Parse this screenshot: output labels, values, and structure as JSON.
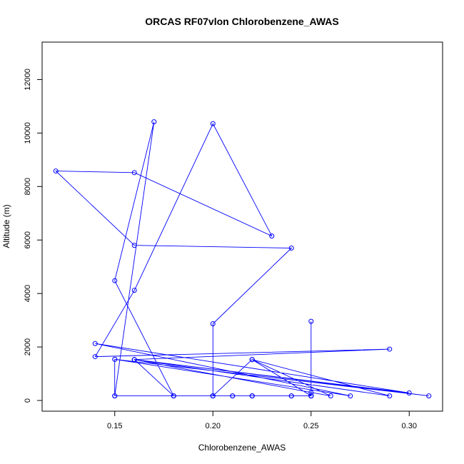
{
  "chart_data": {
    "type": "line",
    "title": "ORCAS RF07vlon Chlorobenzene_AWAS",
    "xlabel": "Chlorobenzene_AWAS",
    "ylabel": "Altitude (m)",
    "xlim": [
      0.113,
      0.317
    ],
    "ylim": [
      -400,
      13400
    ],
    "x_ticks": [
      0.15,
      0.2,
      0.25,
      0.3
    ],
    "x_tick_labels": [
      "0.15",
      "0.20",
      "0.25",
      "0.30"
    ],
    "y_ticks": [
      0,
      2000,
      4000,
      6000,
      8000,
      10000,
      12000
    ],
    "y_tick_labels": [
      "0",
      "2000",
      "4000",
      "6000",
      "8000",
      "10000",
      "12000"
    ],
    "grid": false,
    "series_color": "#0000ff",
    "series": [
      {
        "x": [
          0.15,
          0.15,
          0.18,
          0.2,
          0.21,
          0.22,
          0.24,
          0.25,
          0.25,
          0.25,
          0.2,
          0.2,
          0.24,
          0.16,
          0.12,
          0.16,
          0.23,
          0.2,
          0.16,
          0.14,
          0.29,
          0.16,
          0.25,
          0.26,
          0.22,
          0.2,
          0.18,
          0.16,
          0.31,
          0.15,
          0.27,
          0.14,
          0.3,
          0.16,
          0.29,
          0.22,
          0.25,
          0.22,
          0.25,
          0.15,
          0.17,
          0.15,
          0.18,
          0.22,
          0.2,
          0.21,
          0.22,
          0.24,
          0.25
        ],
        "y": [
          1540,
          170,
          170,
          170,
          170,
          170,
          170,
          170,
          2960,
          170,
          170,
          2870,
          5700,
          5800,
          8580,
          8520,
          6150,
          10350,
          4120,
          1640,
          1920,
          1530,
          300,
          170,
          1530,
          170,
          170,
          1530,
          170,
          1540,
          170,
          2130,
          280,
          1530,
          170,
          1530,
          170,
          1530,
          170,
          170,
          10420,
          4480,
          170,
          170,
          170,
          170,
          170,
          170,
          170
        ]
      }
    ]
  }
}
